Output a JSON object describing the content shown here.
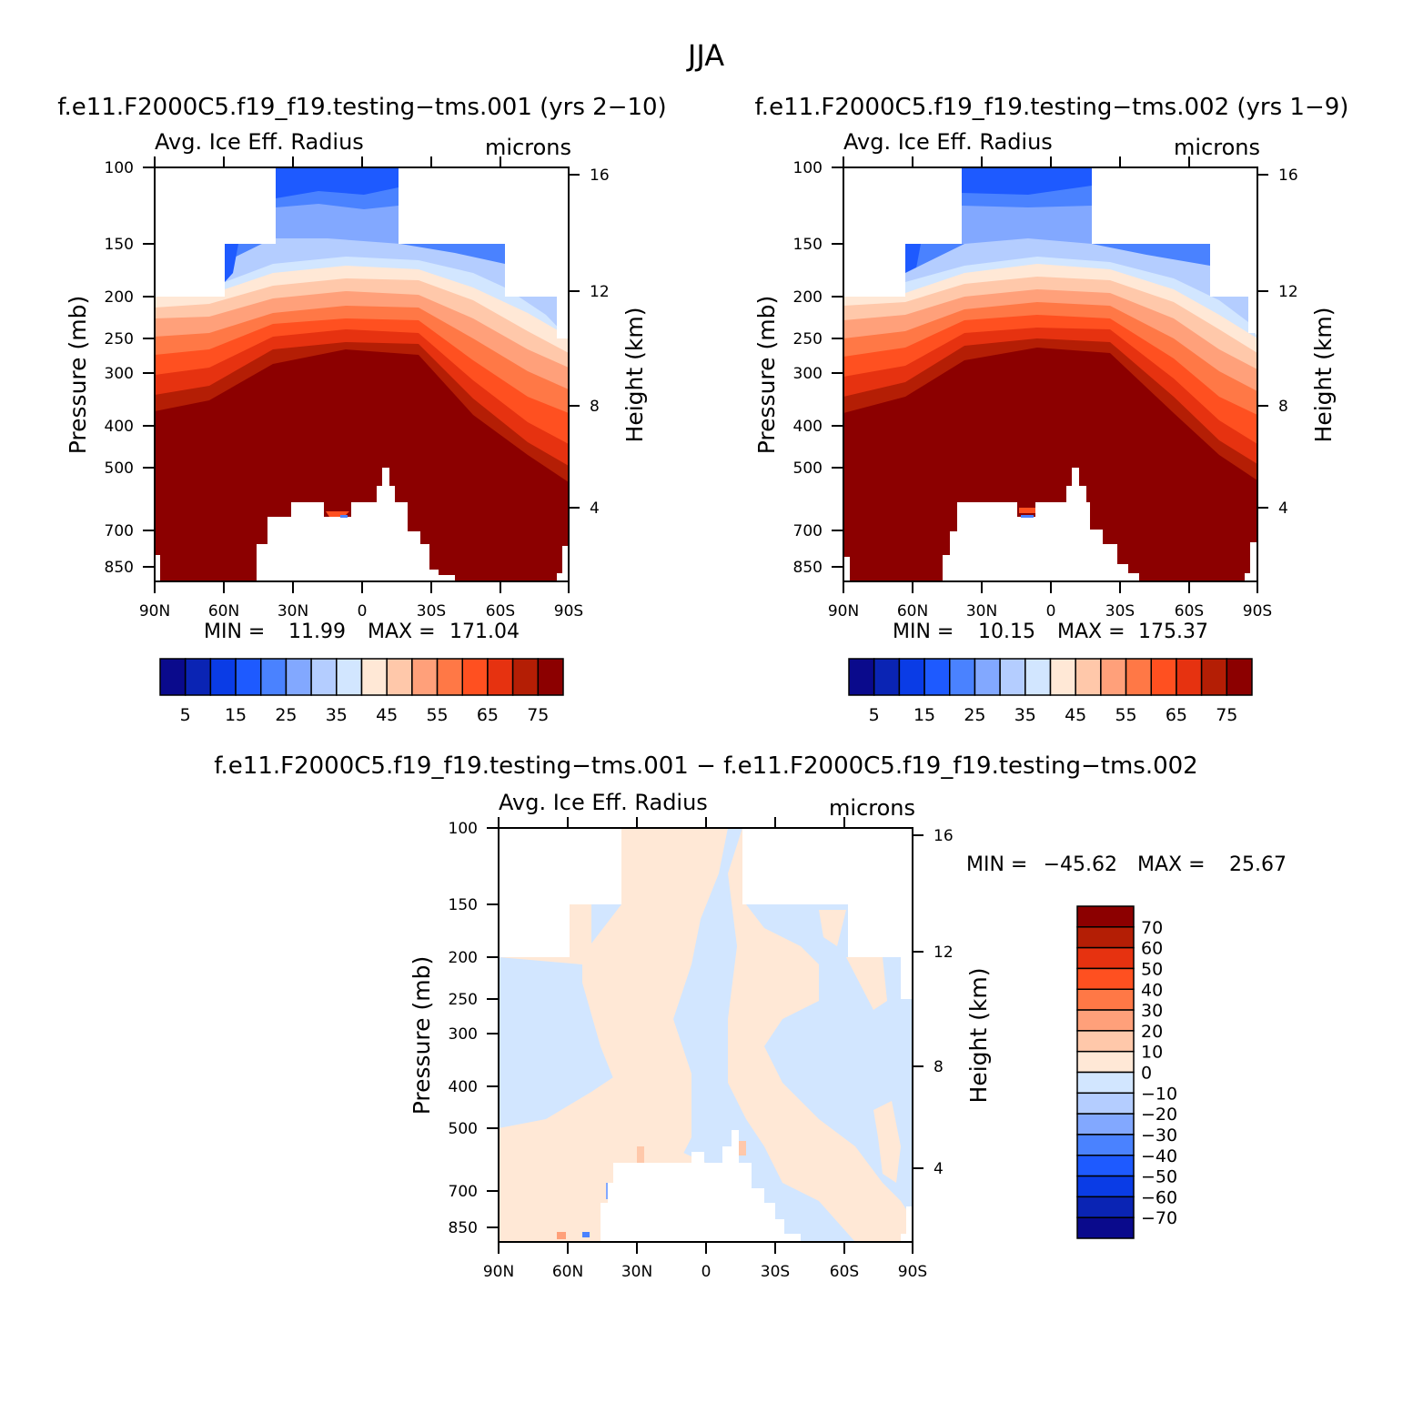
{
  "season": "JJA",
  "colors": {
    "panel_palette": [
      "#0a0a8c",
      "#0a24b4",
      "#0a3ce6",
      "#1e5aff",
      "#4a82ff",
      "#82a8ff",
      "#b4cdff",
      "#d2e6ff",
      "#ffe8d6",
      "#ffc8aa",
      "#ffa07a",
      "#ff7846",
      "#ff5020",
      "#e63210",
      "#b41e05",
      "#8c0000"
    ],
    "diff_palette": [
      "#0a0a8c",
      "#0a24b4",
      "#0a3ce6",
      "#1e5aff",
      "#4a82ff",
      "#82a8ff",
      "#b4cdff",
      "#d2e6ff",
      "#ffe8d6",
      "#ffc8aa",
      "#ffa07a",
      "#ff7846",
      "#ff5020",
      "#e63210",
      "#b41e05",
      "#8c0000"
    ]
  },
  "chart_data": [
    {
      "type": "heatmap",
      "id": "case1",
      "title": "f.e11.F2000C5.f19_f19.testing−tms.001 (yrs 2−10)",
      "left_label": "Avg. Ice Eff. Radius",
      "right_label": "microns",
      "xlabel": "",
      "ylabel": "Pressure (mb)",
      "y2label": "Height (km)",
      "x_ticks": [
        "90N",
        "60N",
        "30N",
        "0",
        "30S",
        "60S",
        "90S"
      ],
      "y_ticks": [
        "100",
        "150",
        "200",
        "250",
        "300",
        "400",
        "500",
        "700",
        "850"
      ],
      "y2_ticks": [
        "16",
        "12",
        "8",
        "4"
      ],
      "stats": {
        "min_label": "MIN =",
        "min": "11.99",
        "max_label": "MAX =",
        "max": "171.04"
      },
      "colorbar": {
        "labels": [
          "5",
          "15",
          "25",
          "35",
          "45",
          "55",
          "65",
          "75"
        ],
        "levels": [
          0,
          5,
          10,
          15,
          20,
          25,
          30,
          35,
          40,
          45,
          50,
          55,
          60,
          65,
          70,
          75
        ]
      }
    },
    {
      "type": "heatmap",
      "id": "case2",
      "title": "f.e11.F2000C5.f19_f19.testing−tms.002 (yrs 1−9)",
      "left_label": "Avg. Ice Eff. Radius",
      "right_label": "microns",
      "xlabel": "",
      "ylabel": "Pressure (mb)",
      "y2label": "Height (km)",
      "x_ticks": [
        "90N",
        "60N",
        "30N",
        "0",
        "30S",
        "60S",
        "90S"
      ],
      "y_ticks": [
        "100",
        "150",
        "200",
        "250",
        "300",
        "400",
        "500",
        "700",
        "850"
      ],
      "y2_ticks": [
        "16",
        "12",
        "8",
        "4"
      ],
      "stats": {
        "min_label": "MIN =",
        "min": "10.15",
        "max_label": "MAX =",
        "max": "175.37"
      },
      "colorbar": {
        "labels": [
          "5",
          "15",
          "25",
          "35",
          "45",
          "55",
          "65",
          "75"
        ],
        "levels": [
          0,
          5,
          10,
          15,
          20,
          25,
          30,
          35,
          40,
          45,
          50,
          55,
          60,
          65,
          70,
          75
        ]
      }
    },
    {
      "type": "heatmap",
      "id": "diff",
      "title": "f.e11.F2000C5.f19_f19.testing−tms.001 − f.e11.F2000C5.f19_f19.testing−tms.002",
      "left_label": "Avg. Ice Eff. Radius",
      "right_label": "microns",
      "xlabel": "",
      "ylabel": "Pressure (mb)",
      "y2label": "Height (km)",
      "x_ticks": [
        "90N",
        "60N",
        "30N",
        "0",
        "30S",
        "60S",
        "90S"
      ],
      "y_ticks": [
        "100",
        "150",
        "200",
        "250",
        "300",
        "400",
        "500",
        "700",
        "850"
      ],
      "y2_ticks": [
        "16",
        "12",
        "8",
        "4"
      ],
      "stats": {
        "min_label": "MIN =",
        "min": "−45.62",
        "max_label": "MAX =",
        "max": "25.67"
      },
      "colorbar": {
        "labels": [
          "70",
          "60",
          "50",
          "40",
          "30",
          "20",
          "10",
          "0",
          "−10",
          "−20",
          "−30",
          "−40",
          "−50",
          "−60",
          "−70"
        ],
        "levels": [
          -70,
          -60,
          -50,
          -40,
          -30,
          -20,
          -10,
          0,
          10,
          20,
          30,
          40,
          50,
          60,
          70
        ]
      }
    }
  ]
}
